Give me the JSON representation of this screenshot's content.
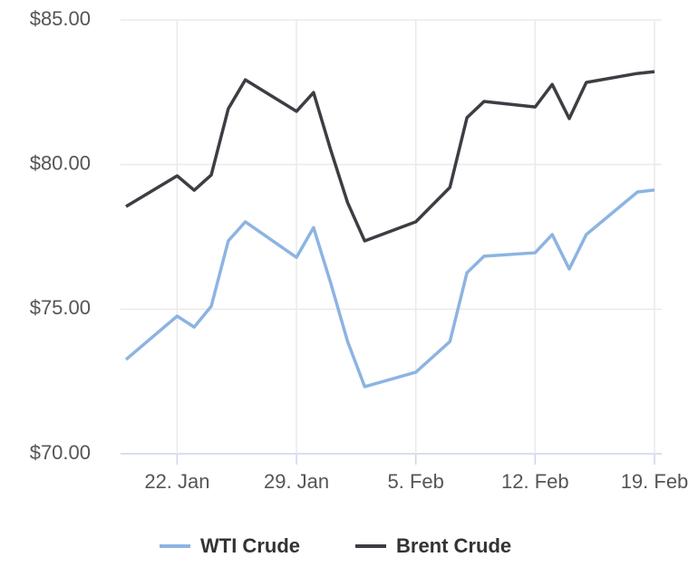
{
  "chart_data": {
    "type": "line",
    "x": [
      "01-19",
      "01-22",
      "01-23",
      "01-24",
      "01-25",
      "01-26",
      "01-29",
      "01-30",
      "01-31",
      "02-01",
      "02-02",
      "02-05",
      "02-07",
      "02-08",
      "02-09",
      "02-12",
      "02-13",
      "02-14",
      "02-15",
      "02-18",
      "02-19"
    ],
    "series": [
      {
        "name": "WTI Crude",
        "color": "#8cb4e2",
        "values": [
          73.26,
          74.76,
          74.38,
          75.1,
          77.36,
          78.02,
          76.79,
          77.82,
          75.92,
          73.88,
          72.32,
          72.82,
          73.88,
          76.26,
          76.83,
          76.95,
          77.58,
          76.39,
          77.58,
          79.05,
          79.12
        ]
      },
      {
        "name": "Brent Crude",
        "color": "#3d3d44",
        "values": [
          78.55,
          79.61,
          79.11,
          79.64,
          81.93,
          82.93,
          81.84,
          82.49,
          80.52,
          78.68,
          77.36,
          78.02,
          79.21,
          81.62,
          82.18,
          81.99,
          82.77,
          81.59,
          82.84,
          83.15,
          83.21
        ]
      }
    ],
    "xlim": [
      "01-19",
      "02-19"
    ],
    "xticks": [
      {
        "value": "01-22",
        "label": "22. Jan"
      },
      {
        "value": "01-29",
        "label": "29. Jan"
      },
      {
        "value": "02-05",
        "label": "5. Feb"
      },
      {
        "value": "02-12",
        "label": "12. Feb"
      },
      {
        "value": "02-19",
        "label": "19. Feb"
      }
    ],
    "ylim": [
      70,
      85
    ],
    "yticks": [
      {
        "value": 70,
        "label": "$70.00"
      },
      {
        "value": 75,
        "label": "$75.00"
      },
      {
        "value": 80,
        "label": "$80.00"
      },
      {
        "value": 85,
        "label": "$85.00"
      }
    ],
    "grid": true,
    "legend": "bottom"
  }
}
